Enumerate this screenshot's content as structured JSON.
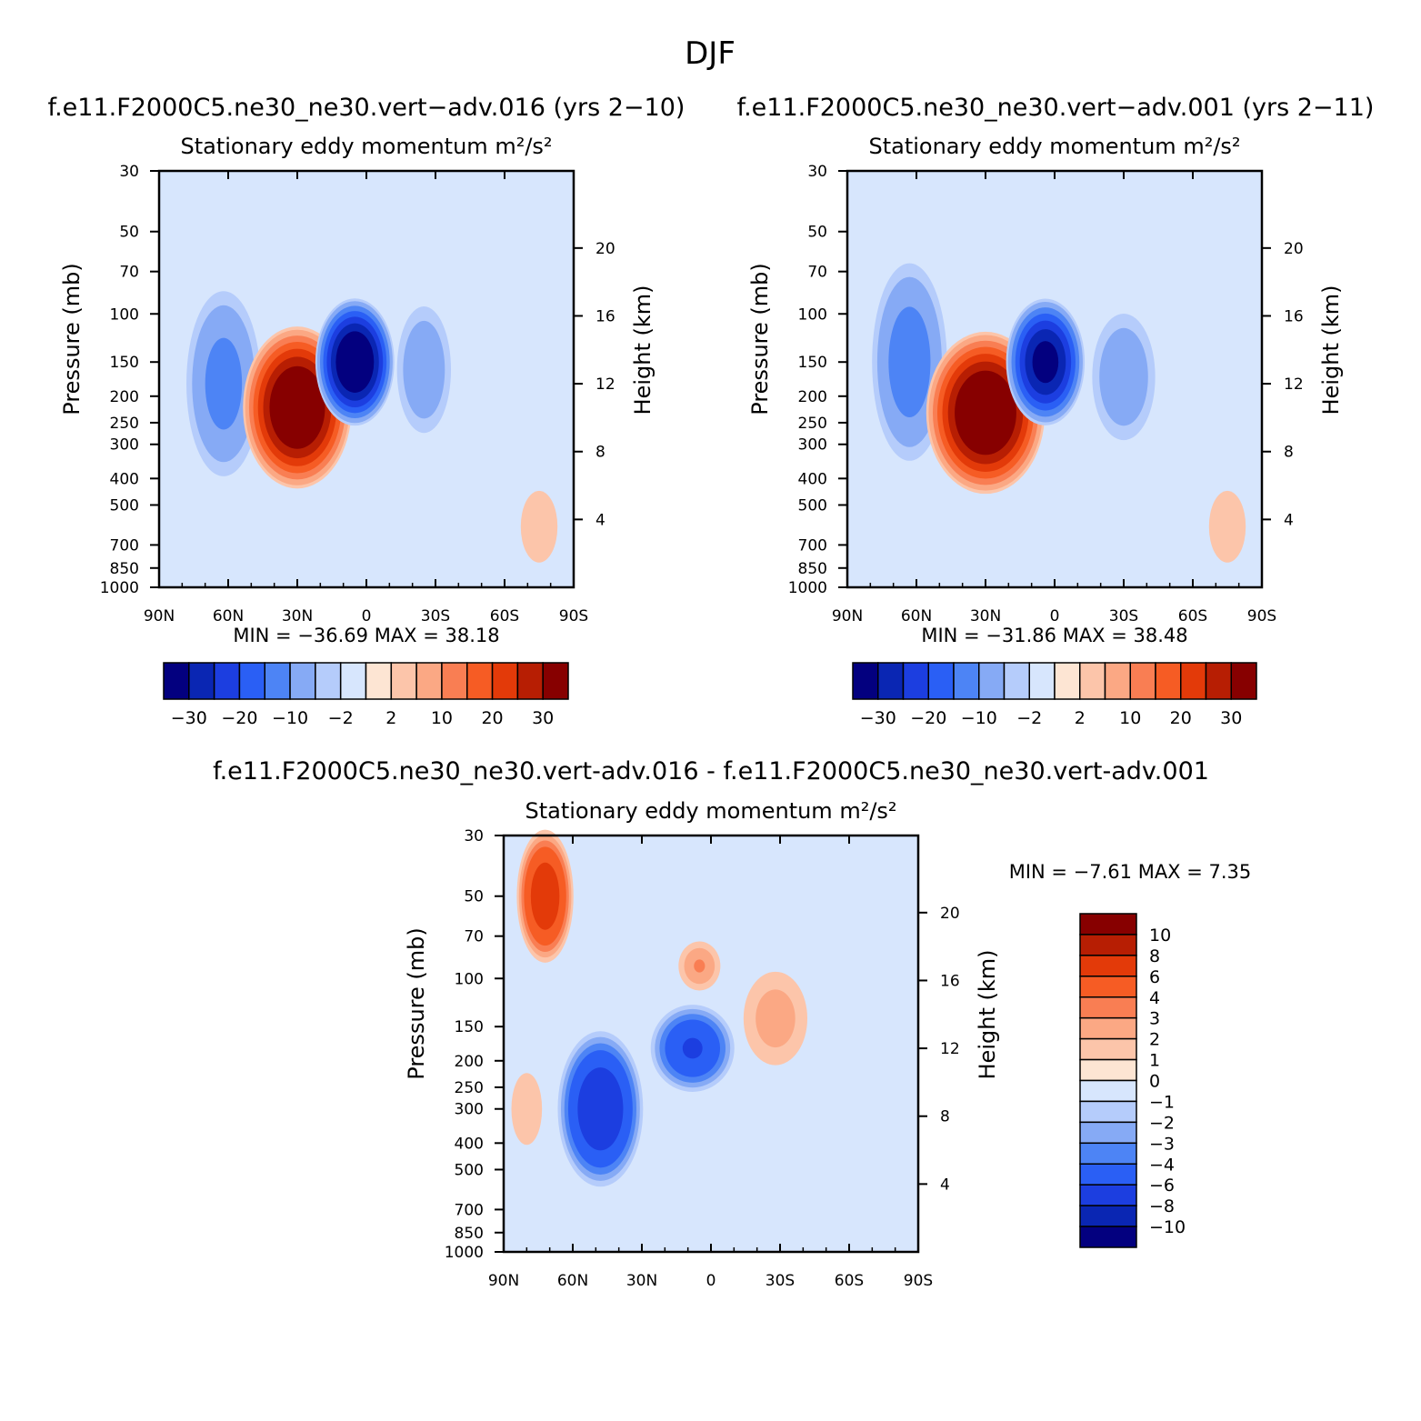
{
  "figure": {
    "season": "DJF",
    "diff_title": "f.e11.F2000C5.ne30_ne30.vert-adv.016 - f.e11.F2000C5.ne30_ne30.vert-adv.001"
  },
  "colors": {
    "abs": [
      "#03007f",
      "#0a26b3",
      "#1c3ee0",
      "#2a5ff5",
      "#4d84f5",
      "#86aaf5",
      "#b5ccfb",
      "#d7e6fd",
      "#fde5d3",
      "#fcc5aa",
      "#fba884",
      "#f97e53",
      "#f65c24",
      "#e33a09",
      "#b71e03",
      "#870000"
    ],
    "diff": [
      "#03007f",
      "#0a26b3",
      "#1c3ee0",
      "#2a5ff5",
      "#4d84f5",
      "#86aaf5",
      "#b5ccfb",
      "#d7e6fd",
      "#fde5d3",
      "#fcc5aa",
      "#fba884",
      "#f97e53",
      "#f65c24",
      "#e33a09",
      "#b71e03",
      "#870000"
    ]
  },
  "chart_data": [
    {
      "id": "panel-016",
      "type": "heatmap",
      "run_title": "f.e11.F2000C5.ne30_ne30.vert-adv.016 (yrs 2-10)",
      "title": "Stationary eddy momentum",
      "units": "m²/s²",
      "xlabel": "",
      "ylabel": "Pressure (mb)",
      "y2label": "Height (km)",
      "x_ticks": [
        "90N",
        "60N",
        "30N",
        "0",
        "30S",
        "60S",
        "90S"
      ],
      "x_range": [
        90,
        -90
      ],
      "y_ticks": [
        30,
        50,
        70,
        100,
        150,
        200,
        250,
        300,
        400,
        500,
        700,
        850,
        1000
      ],
      "y_range": [
        30,
        1000
      ],
      "y_scale": "log",
      "y2_ticks": [
        20,
        16,
        12,
        8,
        4
      ],
      "min": "-36.69",
      "max": "38.18",
      "colorbar_labels": [
        "-30",
        "-20",
        "-10",
        "-2",
        "2",
        "10",
        "20",
        "30"
      ],
      "features": [
        {
          "lat": 62,
          "p": 180,
          "value": -12,
          "sx": 8,
          "sy": 0.85
        },
        {
          "lat": 30,
          "p": 220,
          "value": 38,
          "sx": 11,
          "sy": 0.7
        },
        {
          "lat": 5,
          "p": 150,
          "value": -36.69,
          "sx": 8,
          "sy": 0.55
        },
        {
          "lat": -25,
          "p": 160,
          "value": -9,
          "sx": 6,
          "sy": 0.6
        },
        {
          "lat": -75,
          "p": 600,
          "value": 3,
          "sx": 6,
          "sy": 0.5
        }
      ]
    },
    {
      "id": "panel-001",
      "type": "heatmap",
      "run_title": "f.e11.F2000C5.ne30_ne30.vert-adv.001 (yrs 2-11)",
      "title": "Stationary eddy momentum",
      "units": "m²/s²",
      "xlabel": "",
      "ylabel": "Pressure (mb)",
      "y2label": "Height (km)",
      "x_ticks": [
        "90N",
        "60N",
        "30N",
        "0",
        "30S",
        "60S",
        "90S"
      ],
      "x_range": [
        90,
        -90
      ],
      "y_ticks": [
        30,
        50,
        70,
        100,
        150,
        200,
        250,
        300,
        400,
        500,
        700,
        850,
        1000
      ],
      "y_range": [
        30,
        1000
      ],
      "y_scale": "log",
      "y2_ticks": [
        20,
        16,
        12,
        8,
        4
      ],
      "min": "-31.86",
      "max": "38.48",
      "colorbar_labels": [
        "-30",
        "-20",
        "-10",
        "-2",
        "2",
        "10",
        "20",
        "30"
      ],
      "features": [
        {
          "lat": 63,
          "p": 150,
          "value": -13,
          "sx": 8,
          "sy": 0.9
        },
        {
          "lat": 30,
          "p": 230,
          "value": 38.48,
          "sx": 12,
          "sy": 0.7
        },
        {
          "lat": 4,
          "p": 150,
          "value": -31.86,
          "sx": 8,
          "sy": 0.55
        },
        {
          "lat": -30,
          "p": 170,
          "value": -9,
          "sx": 7,
          "sy": 0.6
        },
        {
          "lat": -75,
          "p": 600,
          "value": 3,
          "sx": 6,
          "sy": 0.5
        }
      ]
    },
    {
      "id": "panel-diff",
      "type": "heatmap",
      "title": "Stationary eddy momentum",
      "units": "m²/s²",
      "xlabel": "",
      "ylabel": "Pressure (mb)",
      "y2label": "Height (km)",
      "x_ticks": [
        "90N",
        "60N",
        "30N",
        "0",
        "30S",
        "60S",
        "90S"
      ],
      "x_range": [
        90,
        -90
      ],
      "y_ticks": [
        30,
        50,
        70,
        100,
        150,
        200,
        250,
        300,
        400,
        500,
        700,
        850,
        1000
      ],
      "y_range": [
        30,
        1000
      ],
      "y_scale": "log",
      "y2_ticks": [
        20,
        16,
        12,
        8,
        4
      ],
      "min": "-7.61",
      "max": "7.35",
      "colorbar_labels": [
        "10",
        "8",
        "6",
        "4",
        "3",
        "2",
        "1",
        "0",
        "-1",
        "-2",
        "-3",
        "-4",
        "-6",
        "-8",
        "-10"
      ],
      "features": [
        {
          "lat": 72,
          "p": 50,
          "value": 7.35,
          "sx": 6,
          "sy": 0.6
        },
        {
          "lat": 48,
          "p": 300,
          "value": -7.61,
          "sx": 9,
          "sy": 0.7
        },
        {
          "lat": 8,
          "p": 180,
          "value": -6,
          "sx": 9,
          "sy": 0.4
        },
        {
          "lat": 5,
          "p": 90,
          "value": 3,
          "sx": 5,
          "sy": 0.25
        },
        {
          "lat": -28,
          "p": 140,
          "value": 2.5,
          "sx": 8,
          "sy": 0.5
        },
        {
          "lat": 80,
          "p": 300,
          "value": 1.5,
          "sx": 5,
          "sy": 0.5
        },
        {
          "lat": -70,
          "p": 300,
          "value": 0.6,
          "sx": 15,
          "sy": 1.2
        }
      ]
    }
  ]
}
